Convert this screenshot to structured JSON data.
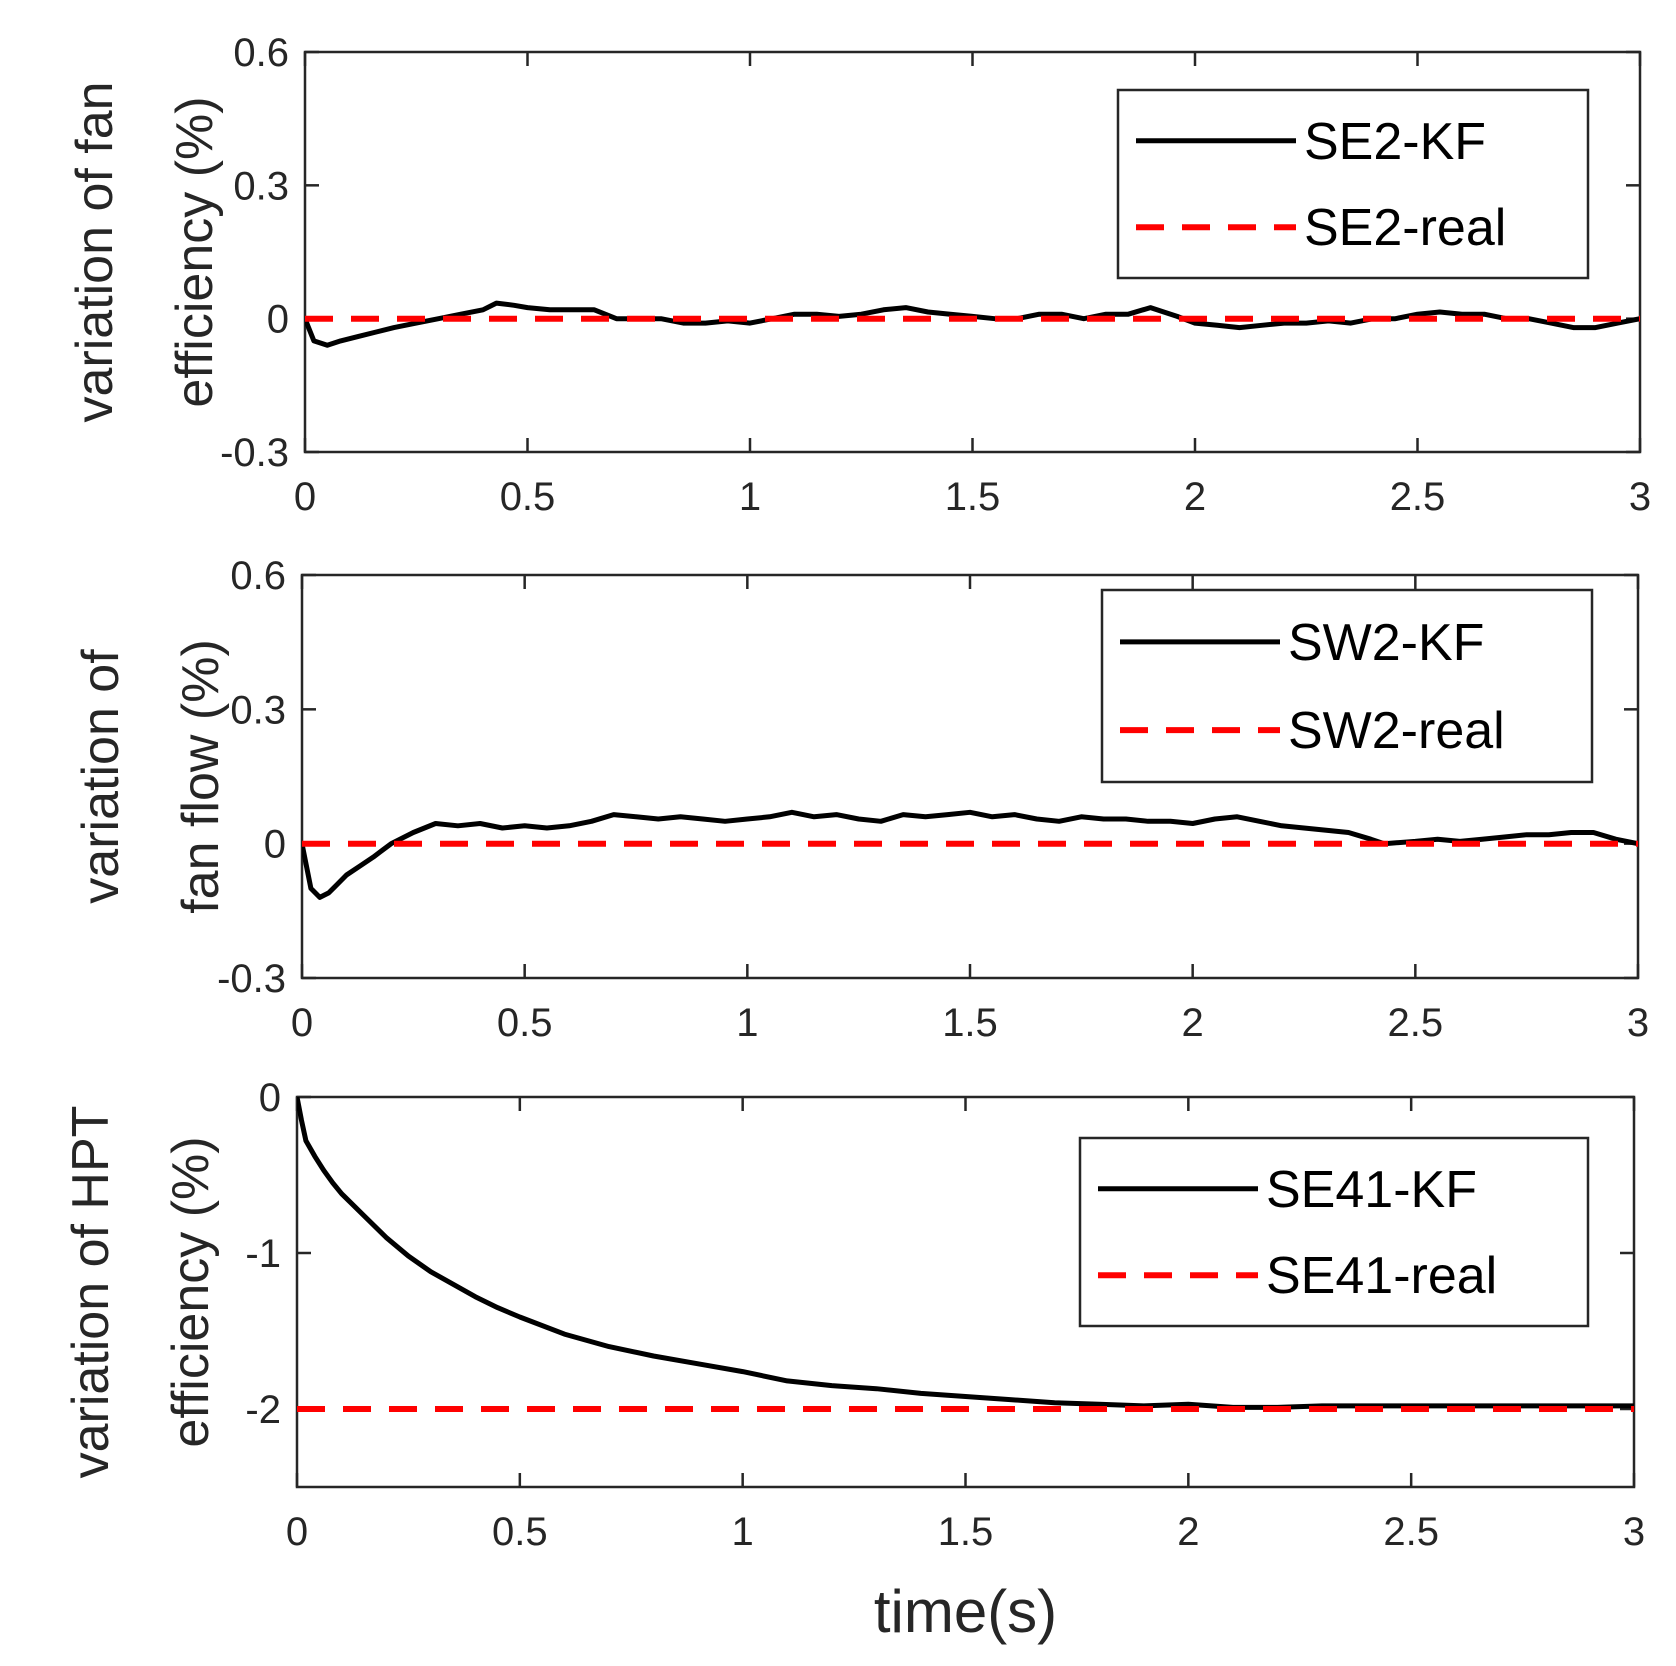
{
  "chart_data": [
    {
      "type": "line",
      "ylabel": [
        "variation of fan",
        "efficiency (%)"
      ],
      "xlabel": "",
      "xlim": [
        0,
        3
      ],
      "ylim": [
        -0.3,
        0.6
      ],
      "xticks": [
        0,
        0.5,
        1,
        1.5,
        2,
        2.5,
        3
      ],
      "xtick_labels": [
        "0",
        "0.5",
        "1",
        "1.5",
        "2",
        "2.5",
        "3"
      ],
      "yticks": [
        -0.3,
        0,
        0.3,
        0.6
      ],
      "ytick_labels": [
        "-0.3",
        "0",
        "0.3",
        "0.6"
      ],
      "legend_position": "top-right",
      "series": [
        {
          "name": "SE2-KF",
          "color": "#000000",
          "style": "solid",
          "x": [
            0,
            0.02,
            0.05,
            0.08,
            0.12,
            0.16,
            0.2,
            0.25,
            0.3,
            0.35,
            0.4,
            0.43,
            0.47,
            0.5,
            0.55,
            0.6,
            0.65,
            0.7,
            0.75,
            0.8,
            0.85,
            0.9,
            0.95,
            1.0,
            1.05,
            1.1,
            1.15,
            1.2,
            1.25,
            1.3,
            1.35,
            1.4,
            1.45,
            1.5,
            1.55,
            1.6,
            1.65,
            1.7,
            1.75,
            1.8,
            1.85,
            1.9,
            1.93,
            1.96,
            2.0,
            2.05,
            2.1,
            2.15,
            2.2,
            2.25,
            2.3,
            2.35,
            2.4,
            2.45,
            2.5,
            2.55,
            2.6,
            2.65,
            2.7,
            2.75,
            2.8,
            2.85,
            2.9,
            2.95,
            3.0
          ],
          "values": [
            0.0,
            -0.05,
            -0.06,
            -0.05,
            -0.04,
            -0.03,
            -0.02,
            -0.01,
            0.0,
            0.01,
            0.02,
            0.035,
            0.03,
            0.025,
            0.02,
            0.02,
            0.02,
            0.0,
            0.0,
            0.0,
            -0.01,
            -0.01,
            -0.005,
            -0.01,
            0.0,
            0.01,
            0.01,
            0.005,
            0.01,
            0.02,
            0.025,
            0.015,
            0.01,
            0.005,
            0.0,
            0.0,
            0.01,
            0.01,
            0.0,
            0.01,
            0.01,
            0.025,
            0.015,
            0.005,
            -0.01,
            -0.015,
            -0.02,
            -0.015,
            -0.01,
            -0.01,
            -0.005,
            -0.01,
            0.0,
            0.0,
            0.01,
            0.015,
            0.01,
            0.01,
            0.0,
            0.0,
            -0.01,
            -0.02,
            -0.02,
            -0.01,
            0.0
          ]
        },
        {
          "name": "SE2-real",
          "color": "#ff0000",
          "style": "dashed",
          "x": [
            0,
            3
          ],
          "values": [
            0,
            0
          ]
        }
      ]
    },
    {
      "type": "line",
      "ylabel": [
        "variation of",
        "fan flow (%)"
      ],
      "xlabel": "",
      "xlim": [
        0,
        3
      ],
      "ylim": [
        -0.3,
        0.6
      ],
      "xticks": [
        0,
        0.5,
        1,
        1.5,
        2,
        2.5,
        3
      ],
      "xtick_labels": [
        "0",
        "0.5",
        "1",
        "1.5",
        "2",
        "2.5",
        "3"
      ],
      "yticks": [
        -0.3,
        0,
        0.3,
        0.6
      ],
      "ytick_labels": [
        "-0.3",
        "0",
        "0.3",
        "0.6"
      ],
      "legend_position": "top-right",
      "series": [
        {
          "name": "SW2-KF",
          "color": "#000000",
          "style": "solid",
          "x": [
            0,
            0.02,
            0.04,
            0.06,
            0.08,
            0.1,
            0.13,
            0.16,
            0.2,
            0.25,
            0.3,
            0.35,
            0.4,
            0.45,
            0.5,
            0.55,
            0.6,
            0.65,
            0.7,
            0.75,
            0.8,
            0.85,
            0.9,
            0.95,
            1.0,
            1.05,
            1.1,
            1.15,
            1.2,
            1.25,
            1.3,
            1.35,
            1.4,
            1.45,
            1.5,
            1.55,
            1.6,
            1.65,
            1.7,
            1.75,
            1.8,
            1.85,
            1.9,
            1.95,
            2.0,
            2.05,
            2.1,
            2.15,
            2.2,
            2.25,
            2.3,
            2.35,
            2.4,
            2.43,
            2.5,
            2.55,
            2.6,
            2.65,
            2.7,
            2.75,
            2.8,
            2.85,
            2.9,
            2.95,
            3.0
          ],
          "values": [
            0.0,
            -0.1,
            -0.12,
            -0.11,
            -0.09,
            -0.07,
            -0.05,
            -0.03,
            0.0,
            0.025,
            0.045,
            0.04,
            0.045,
            0.035,
            0.04,
            0.035,
            0.04,
            0.05,
            0.065,
            0.06,
            0.055,
            0.06,
            0.055,
            0.05,
            0.055,
            0.06,
            0.07,
            0.06,
            0.065,
            0.055,
            0.05,
            0.065,
            0.06,
            0.065,
            0.07,
            0.06,
            0.065,
            0.055,
            0.05,
            0.06,
            0.055,
            0.055,
            0.05,
            0.05,
            0.045,
            0.055,
            0.06,
            0.05,
            0.04,
            0.035,
            0.03,
            0.025,
            0.01,
            0.0,
            0.005,
            0.01,
            0.005,
            0.01,
            0.015,
            0.02,
            0.02,
            0.025,
            0.025,
            0.01,
            0.0
          ]
        },
        {
          "name": "SW2-real",
          "color": "#ff0000",
          "style": "dashed",
          "x": [
            0,
            3
          ],
          "values": [
            0,
            0
          ]
        }
      ]
    },
    {
      "type": "line",
      "ylabel": [
        "variation of HPT",
        "efficiency (%)"
      ],
      "xlabel": "time(s)",
      "xlim": [
        0,
        3
      ],
      "ylim": [
        -2.5,
        0
      ],
      "xticks": [
        0,
        0.5,
        1,
        1.5,
        2,
        2.5,
        3
      ],
      "xtick_labels": [
        "0",
        "0.5",
        "1",
        "1.5",
        "2",
        "2.5",
        "3"
      ],
      "yticks": [
        -2,
        -1,
        0
      ],
      "ytick_labels": [
        "-2",
        "-1",
        "0"
      ],
      "legend_position": "top-right",
      "series": [
        {
          "name": "SE41-KF",
          "color": "#000000",
          "style": "solid",
          "x": [
            0,
            0.01,
            0.02,
            0.04,
            0.06,
            0.08,
            0.1,
            0.15,
            0.2,
            0.25,
            0.3,
            0.35,
            0.4,
            0.45,
            0.5,
            0.6,
            0.7,
            0.8,
            0.9,
            1.0,
            1.1,
            1.2,
            1.3,
            1.4,
            1.5,
            1.6,
            1.7,
            1.8,
            1.9,
            2.0,
            2.1,
            2.2,
            2.3,
            2.4,
            2.5,
            2.6,
            2.7,
            2.8,
            2.9,
            3.0
          ],
          "values": [
            0.0,
            -0.15,
            -0.28,
            -0.38,
            -0.47,
            -0.55,
            -0.62,
            -0.76,
            -0.9,
            -1.02,
            -1.12,
            -1.2,
            -1.28,
            -1.35,
            -1.41,
            -1.52,
            -1.6,
            -1.66,
            -1.71,
            -1.76,
            -1.82,
            -1.85,
            -1.87,
            -1.9,
            -1.92,
            -1.94,
            -1.96,
            -1.97,
            -1.98,
            -1.97,
            -1.99,
            -1.99,
            -1.98,
            -1.98,
            -1.98,
            -1.98,
            -1.98,
            -1.98,
            -1.98,
            -1.98
          ]
        },
        {
          "name": "SE41-real",
          "color": "#ff0000",
          "style": "dashed",
          "x": [
            0,
            3
          ],
          "values": [
            -2,
            -2
          ]
        }
      ]
    }
  ]
}
